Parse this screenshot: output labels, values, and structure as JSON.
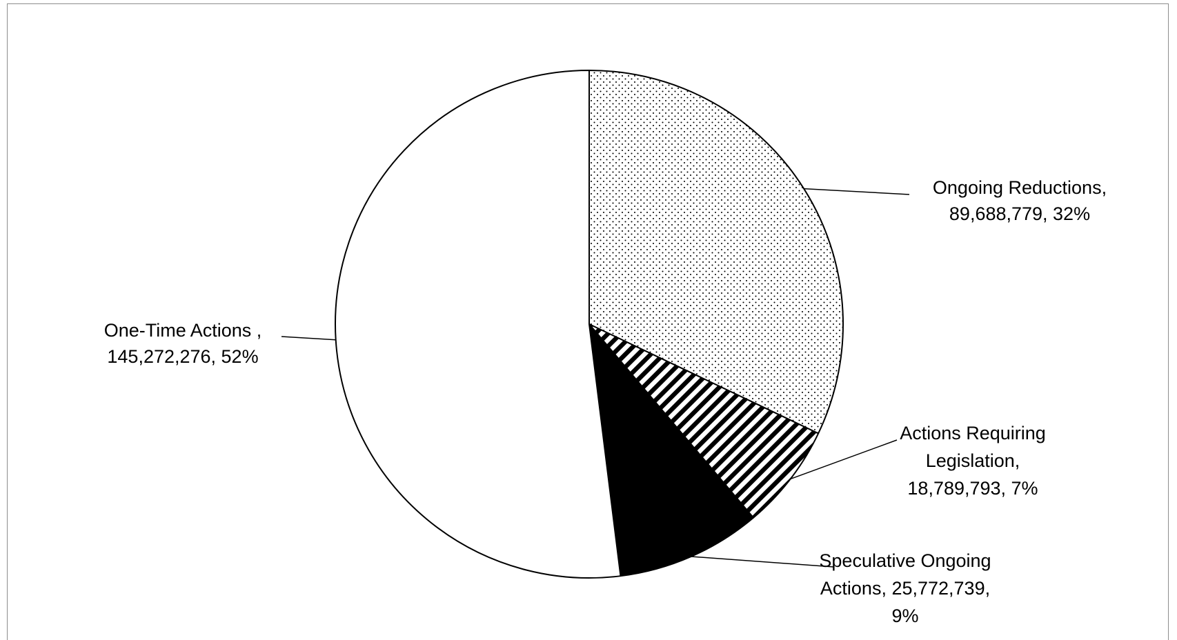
{
  "chart_data": {
    "type": "pie",
    "title": "",
    "start_angle_deg": 0,
    "direction": "clockwise",
    "slices": [
      {
        "label": "Ongoing Reductions",
        "value": 89688779,
        "percent": 32,
        "pattern": "dots",
        "label_lines": [
          "Ongoing Reductions,",
          "89,688,779, 32%"
        ]
      },
      {
        "label": "Actions Requiring Legislation",
        "value": 18789793,
        "percent": 7,
        "pattern": "diagonal-stripes",
        "label_lines": [
          "Actions Requiring",
          "Legislation,",
          "18,789,793, 7%"
        ]
      },
      {
        "label": "Speculative Ongoing Actions",
        "value": 25772739,
        "percent": 9,
        "pattern": "solid-black",
        "label_lines": [
          "Speculative Ongoing",
          "Actions, 25,772,739,",
          "9%"
        ]
      },
      {
        "label": "One-Time Actions",
        "value": 145272276,
        "percent": 52,
        "pattern": "solid-white",
        "label_lines": [
          "One-Time Actions ,",
          "145,272,276, 52%"
        ]
      }
    ],
    "legend": "none",
    "colors": {
      "outline": "#000000",
      "frame": "#8c8c8c",
      "background": "#ffffff"
    }
  }
}
